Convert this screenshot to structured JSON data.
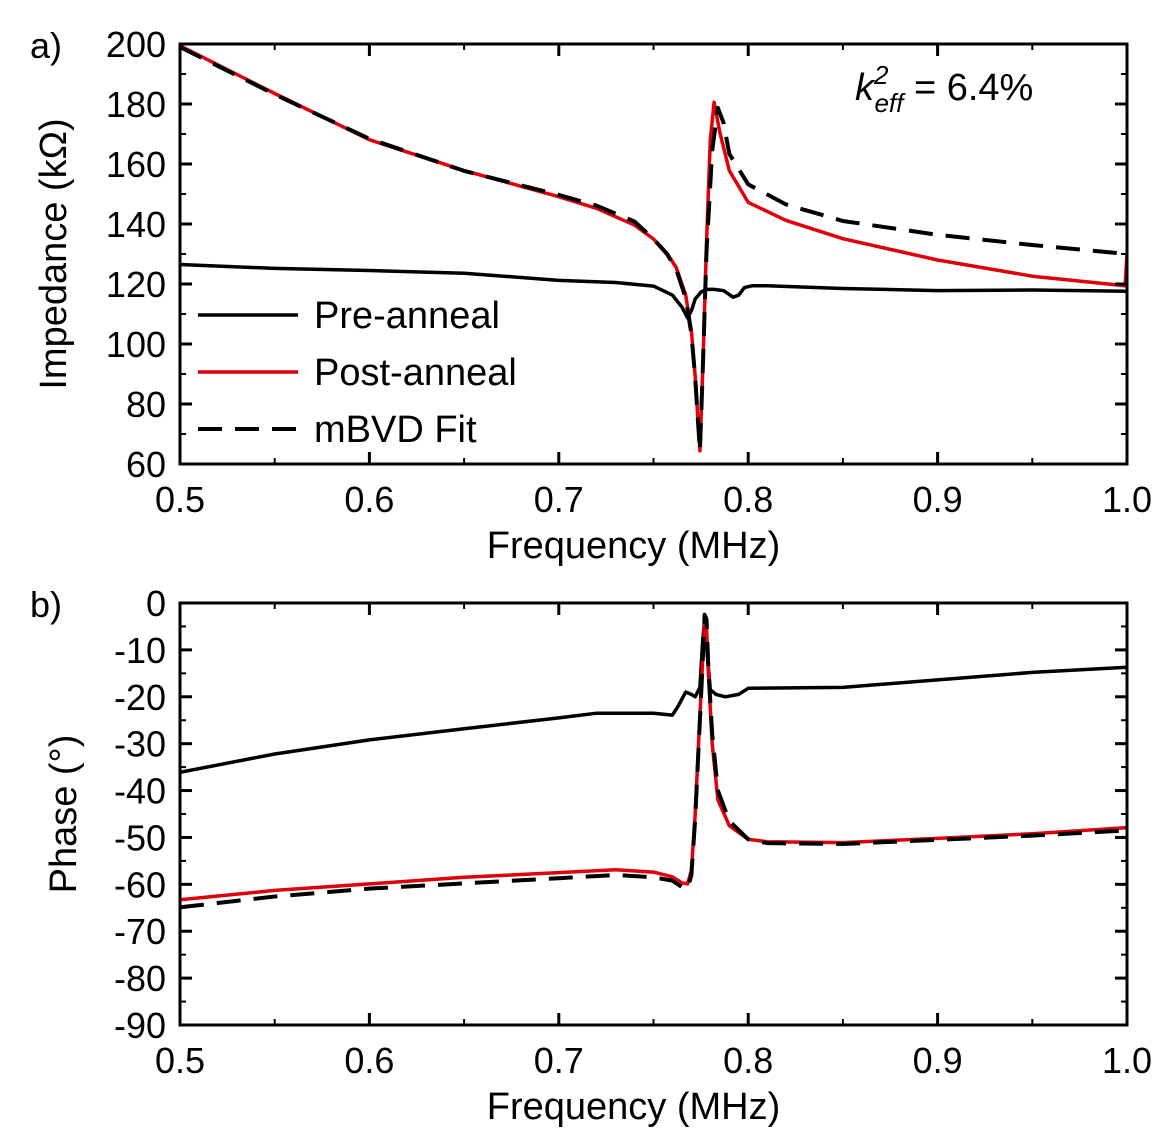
{
  "chart_data": [
    {
      "panel_label": "a)",
      "type": "line",
      "xlabel": "Frequency (MHz)",
      "ylabel": "Impedance (kΩ)",
      "xlim": [
        0.5,
        1.0
      ],
      "ylim": [
        60,
        200
      ],
      "xticks": [
        0.5,
        0.6,
        0.7,
        0.8,
        0.9,
        1.0
      ],
      "xtick_labels": [
        "0.5",
        "0.6",
        "0.7",
        "0.8",
        "0.9",
        "1.0"
      ],
      "yticks": [
        60,
        80,
        100,
        120,
        140,
        160,
        180,
        200
      ],
      "ytick_labels": [
        "60",
        "80",
        "100",
        "120",
        "140",
        "160",
        "180",
        "200"
      ],
      "grid": false,
      "legend_position": "bottom-left",
      "annotation": {
        "base": "k",
        "sup": "2",
        "sub": "eff",
        "rest": " = 6.4%"
      },
      "series": [
        {
          "name": "Pre-anneal",
          "color": "#000000",
          "dash": "solid",
          "x": [
            0.5,
            0.55,
            0.6,
            0.65,
            0.7,
            0.73,
            0.75,
            0.76,
            0.765,
            0.768,
            0.77,
            0.772,
            0.775,
            0.778,
            0.782,
            0.787,
            0.792,
            0.795,
            0.798,
            0.802,
            0.81,
            0.85,
            0.9,
            0.95,
            1.0
          ],
          "y": [
            126.5,
            125.2,
            124.5,
            123.6,
            121.2,
            120.5,
            119.3,
            116.3,
            112.3,
            108.7,
            111.1,
            115.0,
            117.3,
            118.2,
            118.2,
            117.8,
            115.6,
            116.3,
            118.8,
            119.4,
            119.4,
            118.5,
            117.8,
            118.0,
            117.6
          ]
        },
        {
          "name": "Post-anneal",
          "color": "#e0000b",
          "dash": "solid",
          "x": [
            0.5,
            0.55,
            0.6,
            0.65,
            0.7,
            0.72,
            0.74,
            0.75,
            0.757,
            0.762,
            0.767,
            0.77,
            0.772,
            0.7745,
            0.776,
            0.778,
            0.78,
            0.782,
            0.785,
            0.79,
            0.8,
            0.82,
            0.85,
            0.9,
            0.95,
            0.999,
            1.0
          ],
          "y": [
            199.4,
            183.5,
            168.1,
            157.8,
            149.1,
            145.2,
            139.6,
            135.0,
            130.3,
            125.5,
            116.3,
            104.3,
            89.1,
            64.4,
            90.8,
            133.7,
            168.1,
            180.6,
            170.6,
            157.8,
            147.2,
            141.2,
            135.1,
            128.0,
            122.6,
            119.4,
            130.0
          ]
        },
        {
          "name": "mBVD Fit",
          "color": "#000000",
          "dash": "dashed",
          "x": [
            0.5,
            0.55,
            0.6,
            0.65,
            0.7,
            0.72,
            0.74,
            0.75,
            0.757,
            0.762,
            0.767,
            0.77,
            0.772,
            0.7745,
            0.776,
            0.778,
            0.781,
            0.784,
            0.787,
            0.79,
            0.8,
            0.82,
            0.85,
            0.9,
            0.95,
            1.0
          ],
          "y": [
            199.0,
            183.2,
            168.4,
            157.7,
            149.7,
            146.1,
            140.8,
            135.0,
            130.1,
            124.9,
            115.3,
            103.3,
            88.7,
            64.4,
            90.8,
            130.8,
            164.5,
            178.7,
            173.7,
            163.4,
            153.2,
            146.5,
            141.0,
            136.4,
            133.0,
            130.0
          ]
        }
      ]
    },
    {
      "panel_label": "b)",
      "type": "line",
      "xlabel": "Frequency (MHz)",
      "ylabel": "Phase (°)",
      "xlim": [
        0.5,
        1.0
      ],
      "ylim": [
        -90,
        0
      ],
      "xticks": [
        0.5,
        0.6,
        0.7,
        0.8,
        0.9,
        1.0
      ],
      "xtick_labels": [
        "0.5",
        "0.6",
        "0.7",
        "0.8",
        "0.9",
        "1.0"
      ],
      "yticks": [
        -90,
        -80,
        -70,
        -60,
        -50,
        -40,
        -30,
        -20,
        -10,
        0
      ],
      "ytick_labels": [
        "-90",
        "-80",
        "-70",
        "-60",
        "-50",
        "-40",
        "-30",
        "-20",
        "-10",
        "0"
      ],
      "grid": false,
      "series": [
        {
          "name": "Pre-anneal",
          "color": "#000000",
          "dash": "solid",
          "x": [
            0.5,
            0.55,
            0.6,
            0.65,
            0.7,
            0.72,
            0.75,
            0.76,
            0.763,
            0.767,
            0.77,
            0.772,
            0.7745,
            0.776,
            0.777,
            0.778,
            0.78,
            0.783,
            0.788,
            0.795,
            0.8,
            0.85,
            0.9,
            0.95,
            1.0
          ],
          "y": [
            -36.1,
            -32.2,
            -29.2,
            -26.8,
            -24.5,
            -23.5,
            -23.5,
            -23.9,
            -22.0,
            -19.0,
            -19.5,
            -20.0,
            -18.0,
            -8.0,
            -3.5,
            -9.0,
            -18.5,
            -19.5,
            -20.0,
            -19.5,
            -18.2,
            -18.0,
            -16.4,
            -14.8,
            -13.7
          ]
        },
        {
          "name": "Post-anneal",
          "color": "#e0000b",
          "dash": "solid",
          "x": [
            0.5,
            0.55,
            0.6,
            0.65,
            0.7,
            0.73,
            0.75,
            0.76,
            0.765,
            0.768,
            0.77,
            0.772,
            0.774,
            0.776,
            0.777,
            0.778,
            0.779,
            0.781,
            0.784,
            0.79,
            0.8,
            0.81,
            0.85,
            0.9,
            0.95,
            1.0
          ],
          "y": [
            -63.3,
            -61.3,
            -59.9,
            -58.5,
            -57.5,
            -56.9,
            -57.4,
            -58.4,
            -59.7,
            -59.9,
            -57.0,
            -45.0,
            -28.0,
            -12.0,
            -3.5,
            -5.0,
            -15.0,
            -30.0,
            -42.0,
            -47.5,
            -50.4,
            -50.9,
            -51.1,
            -50.2,
            -49.2,
            -47.9
          ]
        },
        {
          "name": "mBVD Fit",
          "color": "#000000",
          "dash": "dashed",
          "x": [
            0.5,
            0.55,
            0.6,
            0.65,
            0.7,
            0.73,
            0.75,
            0.76,
            0.765,
            0.768,
            0.77,
            0.772,
            0.774,
            0.776,
            0.777,
            0.778,
            0.779,
            0.781,
            0.784,
            0.79,
            0.8,
            0.81,
            0.85,
            0.9,
            0.95,
            1.0
          ],
          "y": [
            -64.9,
            -62.6,
            -60.9,
            -59.8,
            -58.7,
            -58.0,
            -58.5,
            -59.2,
            -60.6,
            -60.9,
            -58.0,
            -46.0,
            -29.0,
            -12.5,
            -2.5,
            -3.5,
            -14.0,
            -28.0,
            -40.0,
            -46.5,
            -50.4,
            -51.2,
            -51.4,
            -50.5,
            -49.6,
            -48.5
          ]
        }
      ]
    }
  ]
}
